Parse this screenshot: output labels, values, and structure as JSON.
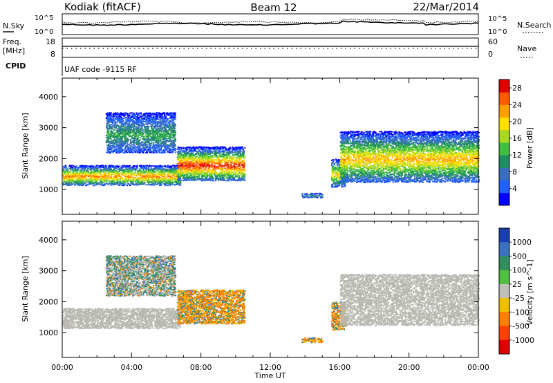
{
  "header": {
    "station": "Kodiak (fitACF)",
    "beam": "Beam 12",
    "date": "22/Mar/2014"
  },
  "noise_panel": {
    "left_label": "N.Sky",
    "right_label": "N.Search",
    "left_ticks": [
      "10^5",
      "10^0"
    ],
    "right_ticks": [
      "10^5",
      "10^0"
    ]
  },
  "freq_panel": {
    "left_label_1": "Freq.",
    "left_label_2": "[MHz]",
    "left_ticks": [
      "18",
      "8"
    ],
    "right_label": "Nave",
    "right_ticks": [
      "60",
      "0"
    ],
    "cpid_label": "CPID",
    "cpid_text": "UAF code -9115 RF"
  },
  "time_axis": {
    "label": "Time UT",
    "ticks": [
      "00:00",
      "04:00",
      "08:00",
      "12:00",
      "16:00",
      "20:00",
      "00:00"
    ]
  },
  "chart_data": [
    {
      "type": "heatmap",
      "title": "",
      "xlabel": "Time UT",
      "ylabel": "Slant Range [km]",
      "x_unit": "hours UT",
      "xlim": [
        0,
        24
      ],
      "ylim": [
        200,
        4600
      ],
      "y_ticks": [
        1000,
        2000,
        3000,
        4000
      ],
      "colorbar": {
        "label": "Power [dB]",
        "ticks": [
          4,
          8,
          12,
          16,
          20,
          24,
          28
        ],
        "range": [
          0,
          30
        ],
        "colors": [
          "#0000ff",
          "#2060ff",
          "#3a6fbf",
          "#1f8f5f",
          "#3fbf3f",
          "#a8d820",
          "#ffe000",
          "#ffa000",
          "#ff5a00",
          "#e00000"
        ]
      },
      "regions": [
        {
          "t0": 0.0,
          "t1": 6.8,
          "r_low": 1150,
          "r_high": 1800,
          "peak_db": 22
        },
        {
          "t0": 2.5,
          "t1": 6.5,
          "r_low": 2200,
          "r_high": 3500,
          "peak_db": 10
        },
        {
          "t0": 6.6,
          "t1": 10.5,
          "r_low": 1300,
          "r_high": 2400,
          "peak_db": 26
        },
        {
          "t0": 13.8,
          "t1": 15.0,
          "r_low": 750,
          "r_high": 900,
          "peak_db": 8
        },
        {
          "t0": 15.5,
          "t1": 16.3,
          "r_low": 1100,
          "r_high": 2000,
          "peak_db": 18
        },
        {
          "t0": 16.0,
          "t1": 24.0,
          "r_low": 1250,
          "r_high": 2900,
          "peak_db": 20
        }
      ]
    },
    {
      "type": "heatmap",
      "title": "",
      "xlabel": "Time UT",
      "ylabel": "Slant Range [km]",
      "x_unit": "hours UT",
      "xlim": [
        0,
        24
      ],
      "ylim": [
        200,
        4600
      ],
      "y_ticks": [
        1000,
        2000,
        3000,
        4000
      ],
      "colorbar": {
        "label": "Velocity [m s^-1]",
        "ticks": [
          "1000",
          "500",
          "100",
          "25",
          "-25",
          "-100",
          "-500",
          "-1000"
        ],
        "colors": [
          "#1a3fb0",
          "#3a72c0",
          "#2f8f5f",
          "#50c040",
          "#c0c0b8",
          "#f0c000",
          "#ff8000",
          "#ff4000",
          "#e00000"
        ],
        "ground_scatter_color": "#b8b8b0"
      },
      "regions": [
        {
          "t0": 0.0,
          "t1": 6.8,
          "r_low": 1150,
          "r_high": 1800,
          "class": "ground scatter"
        },
        {
          "t0": 2.5,
          "t1": 6.5,
          "r_low": 2200,
          "r_high": 3500,
          "class": "mixed"
        },
        {
          "t0": 6.6,
          "t1": 10.5,
          "r_low": 1300,
          "r_high": 2400,
          "class": "negative velocity"
        },
        {
          "t0": 13.8,
          "t1": 15.0,
          "r_low": 700,
          "r_high": 850,
          "class": "negative velocity"
        },
        {
          "t0": 15.5,
          "t1": 16.3,
          "r_low": 1100,
          "r_high": 2000,
          "class": "negative velocity"
        },
        {
          "t0": 16.0,
          "t1": 24.0,
          "r_low": 1250,
          "r_high": 2900,
          "class": "ground scatter"
        }
      ]
    }
  ]
}
